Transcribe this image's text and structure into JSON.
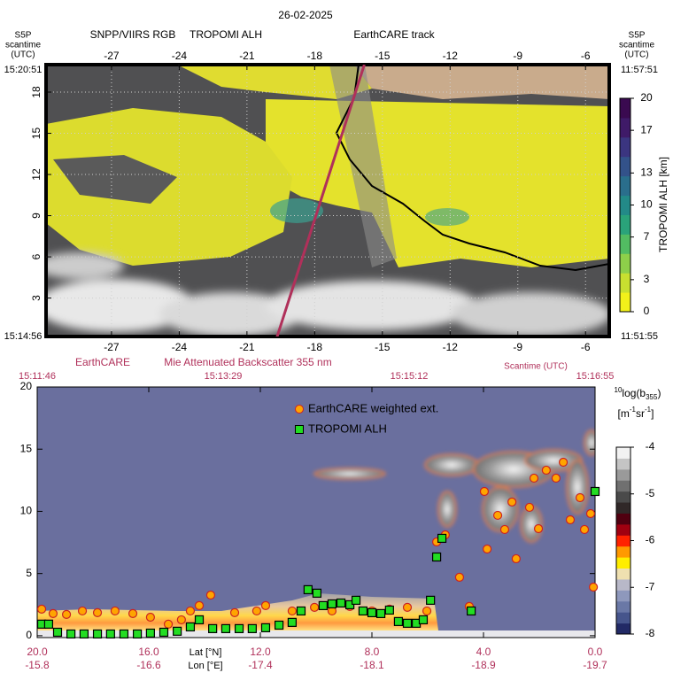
{
  "chart_data": [
    {
      "type": "map",
      "title": "26-02-2025",
      "subtitles": [
        "SNPP/VIIRS RGB",
        "TROPOMI ALH"
      ],
      "side_label": [
        "S5P",
        "scantime",
        "(UTC)"
      ],
      "left_times": [
        "15:20:51",
        "15:14:56"
      ],
      "right_times": [
        "11:57:51",
        "11:51:55"
      ],
      "xlim": [
        -29.9,
        -4.95
      ],
      "xticks": [
        -27,
        -24,
        -21,
        -18,
        -15,
        -12,
        -9,
        -6
      ],
      "ylim": [
        0.2,
        20
      ],
      "yticks": [
        3,
        6,
        9,
        12,
        15,
        18
      ],
      "grid": true,
      "track": {
        "name": "EarthCARE track",
        "color": "#b0305a",
        "x": [
          -19.7,
          -15.8
        ],
        "y": [
          0,
          20
        ]
      },
      "colorbar": {
        "label": "TROPOMI ALH [km]",
        "lim": [
          0,
          20
        ],
        "ticks": [
          0,
          3,
          7,
          10,
          13,
          17,
          20
        ],
        "colors": [
          "#f2f11a",
          "#c8e030",
          "#8ed04a",
          "#52bc62",
          "#2aa37a",
          "#238a88",
          "#2a6e8c",
          "#33528a",
          "#3b3580",
          "#3f1a68",
          "#3a0a50"
        ]
      }
    },
    {
      "type": "scatter",
      "source": "EarthCARE",
      "title": "Mie Attenuated Backscatter 355 nm",
      "time_label": "Scantime (UTC)",
      "time_ticks": [
        "15:11:46",
        "15:13:29",
        "15:15:12",
        "15:16:55"
      ],
      "xlabel": "Lat [°N]",
      "x2label": "Lon [°E]",
      "xlim": [
        20,
        0
      ],
      "xticks": [
        {
          "value": 20,
          "label": "20.0"
        },
        {
          "value": 16,
          "label": "16.0"
        },
        {
          "value": 12,
          "label": "12.0"
        },
        {
          "value": 8,
          "label": "8.0"
        },
        {
          "value": 4,
          "label": "4.0"
        },
        {
          "value": 0,
          "label": "0.0"
        }
      ],
      "lon_ticks": [
        -15.8,
        -16.6,
        -17.4,
        -18.1,
        -18.9,
        -19.7
      ],
      "ylim": [
        -0.15,
        20
      ],
      "yticks": [
        0,
        5,
        10,
        15,
        20
      ],
      "series": [
        {
          "name": "EarthCARE weighted ext.",
          "color": "#ffa500",
          "edge": "#cc2222",
          "marker": "circle",
          "x": [
            19.84,
            19.43,
            18.95,
            18.38,
            17.84,
            17.21,
            16.57,
            15.94,
            15.3,
            14.83,
            14.51,
            14.19,
            13.78,
            12.92,
            12.13,
            11.81,
            10.86,
            10.06,
            9.43,
            8.79,
            8.0,
            7.37,
            6.73,
            6.03,
            5.68,
            5.37,
            4.86,
            4.51,
            3.97,
            3.87,
            3.49,
            3.24,
            2.98,
            2.83,
            2.35,
            2.19,
            2.03,
            1.75,
            1.4,
            1.14,
            0.89,
            0.54,
            0.38,
            0.16,
            0.06
          ],
          "values": [
            2.14,
            1.78,
            1.71,
            1.99,
            1.85,
            1.99,
            1.78,
            1.49,
            0.93,
            1.28,
            1.99,
            2.42,
            3.27,
            1.85,
            1.99,
            2.42,
            1.99,
            2.28,
            1.99,
            2.35,
            1.99,
            2.14,
            2.28,
            1.99,
            7.54,
            8.11,
            4.7,
            2.35,
            11.6,
            6.97,
            9.68,
            8.54,
            10.75,
            6.19,
            10.32,
            12.67,
            8.61,
            13.31,
            12.67,
            13.95,
            9.32,
            11.1,
            8.54,
            9.82,
            3.91
          ]
        },
        {
          "name": "TROPOMI ALH",
          "color": "#22dd22",
          "edge": "#000000",
          "marker": "square",
          "x": [
            19.84,
            19.59,
            19.27,
            18.79,
            18.32,
            17.84,
            17.37,
            16.89,
            16.41,
            15.94,
            15.46,
            14.98,
            14.51,
            14.19,
            13.71,
            13.24,
            12.76,
            12.29,
            11.81,
            11.33,
            10.86,
            10.54,
            10.29,
            9.97,
            9.75,
            9.43,
            9.11,
            8.79,
            8.57,
            8.32,
            8.0,
            7.68,
            7.37,
            7.05,
            6.73,
            6.41,
            6.16,
            5.9,
            5.68,
            5.49,
            4.44,
            0.0
          ],
          "values": [
            0.93,
            0.93,
            0.28,
            0.14,
            0.14,
            0.14,
            0.14,
            0.14,
            0.14,
            0.21,
            0.28,
            0.36,
            0.71,
            1.28,
            0.57,
            0.57,
            0.57,
            0.57,
            0.64,
            0.85,
            1.07,
            1.99,
            3.7,
            3.42,
            2.42,
            2.56,
            2.63,
            2.49,
            2.85,
            1.99,
            1.85,
            1.78,
            2.06,
            1.14,
            1.0,
            1.0,
            1.28,
            2.85,
            6.33,
            7.83,
            1.99,
            11.6
          ]
        }
      ],
      "colorbar": {
        "label_prefix": "10",
        "label": "log(b",
        "label_sub": "355",
        "label_end": ")",
        "unit": "[m",
        "unit_sup1": "-1",
        "unit_mid": "sr",
        "unit_sup2": "-1",
        "unit_end": "]",
        "lim": [
          -8,
          -4
        ],
        "ticks": [
          -4,
          -5,
          -6,
          -7,
          -8
        ],
        "colors": [
          "#222a66",
          "#46558c",
          "#6a78a6",
          "#8e98bc",
          "#b8b8c8",
          "#efe0b0",
          "#ffee00",
          "#ff9900",
          "#ff2200",
          "#a00010",
          "#500010",
          "#302828",
          "#4a4a4a",
          "#707070",
          "#9a9a9a",
          "#c4c4c4",
          "#f2f2f2"
        ]
      }
    }
  ]
}
